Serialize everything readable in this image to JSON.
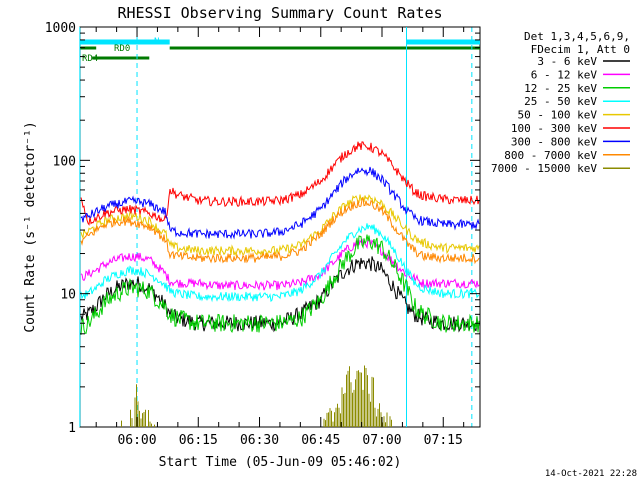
{
  "chart_data": {
    "type": "line",
    "title": "RHESSI Observing Summary Count Rates",
    "xlabel": "Start Time (05-Jun-09 05:46:02)",
    "ylabel": "Count Rate (s⁻¹ detector⁻¹)",
    "y_scale": "log",
    "ylim": [
      1,
      1000
    ],
    "xlim": [
      "05:46:02",
      "07:24:00"
    ],
    "x_ticks": [
      "06:00",
      "06:15",
      "06:30",
      "06:45",
      "07:00",
      "07:15"
    ],
    "y_ticks": [
      "1",
      "10",
      "100",
      "1000"
    ],
    "legend_header": [
      "Det 1,3,4,5,6,9,",
      "FDecim 1, Att 0"
    ],
    "legend_position": "right",
    "timestamp": "14-Oct-2021 22:28",
    "flags": [
      {
        "name": "N",
        "color": "#00e5ff",
        "segments": [
          [
            "05:46",
            "06:08"
          ],
          [
            "07:06",
            "07:24"
          ]
        ]
      },
      {
        "name": "RD0",
        "color": "#007a00",
        "segments": [
          [
            "05:46",
            "05:50"
          ],
          [
            "06:08",
            "07:24"
          ]
        ]
      },
      {
        "name": "RD4",
        "color": "#007a00",
        "segments": [
          [
            "05:49",
            "06:03"
          ]
        ]
      }
    ],
    "vertical_lines": [
      {
        "x": "05:46",
        "style": "solid",
        "color": "#00e5ff"
      },
      {
        "x": "06:00",
        "style": "dashed",
        "color": "#00e5ff"
      },
      {
        "x": "07:06",
        "style": "solid",
        "color": "#00e5ff"
      },
      {
        "x": "07:22",
        "style": "dashed",
        "color": "#00e5ff"
      }
    ],
    "x": [
      "05:46",
      "05:48",
      "05:50",
      "05:52",
      "05:55",
      "05:58",
      "06:00",
      "06:03",
      "06:05",
      "06:07",
      "06:08",
      "06:10",
      "06:15",
      "06:20",
      "06:25",
      "06:30",
      "06:35",
      "06:40",
      "06:45",
      "06:48",
      "06:51",
      "06:54",
      "06:57",
      "07:00",
      "07:03",
      "07:06",
      "07:08",
      "07:10",
      "07:15",
      "07:20",
      "07:22"
    ],
    "series": [
      {
        "name": "3 - 6 keV",
        "color": "#000000",
        "values": [
          6.5,
          7,
          8,
          9.5,
          11,
          12,
          12,
          11,
          9.5,
          8,
          7,
          6.5,
          6,
          6,
          6,
          6,
          6,
          7,
          9,
          12,
          15,
          17,
          17,
          15,
          11,
          8,
          7,
          6.5,
          6,
          6,
          6
        ]
      },
      {
        "name": "6 - 12 keV",
        "color": "#ff00ff",
        "values": [
          13,
          14,
          15,
          16.5,
          18,
          19,
          19,
          18,
          16,
          14,
          12.5,
          12,
          12,
          11.5,
          11.5,
          11.5,
          11.5,
          12,
          14,
          17,
          21,
          24,
          24,
          21,
          17,
          14,
          13,
          12,
          12,
          12,
          12
        ]
      },
      {
        "name": "12 - 25 keV",
        "color": "#00cc00",
        "values": [
          5.5,
          6,
          7,
          8.5,
          10,
          11,
          11,
          10.5,
          9,
          8,
          7,
          6.5,
          6,
          6,
          6,
          6,
          6,
          6.5,
          9,
          13,
          18,
          23,
          25,
          22,
          16,
          11,
          8,
          7,
          6,
          6,
          6
        ]
      },
      {
        "name": "25 - 50 keV",
        "color": "#00ffff",
        "values": [
          9.5,
          10,
          11,
          12.5,
          14,
          15,
          15,
          14,
          13,
          11.5,
          10.5,
          10,
          9.5,
          9.5,
          9.5,
          9.5,
          9.5,
          10.5,
          14,
          19,
          25,
          30,
          32,
          28,
          21,
          15,
          12,
          11,
          10,
          10,
          10
        ]
      },
      {
        "name": "50 - 100 keV",
        "color": "#e8c800",
        "values": [
          27,
          29,
          32,
          35,
          37,
          38,
          38,
          35,
          31,
          28,
          23,
          22,
          21,
          21,
          21,
          21,
          21,
          23,
          30,
          38,
          46,
          52,
          53,
          47,
          38,
          30,
          26,
          24,
          22,
          22,
          22
        ]
      },
      {
        "name": "100 - 300 keV",
        "color": "#ff0000",
        "values": [
          58,
          35,
          37,
          40,
          42,
          43,
          42,
          40,
          38,
          35,
          60,
          55,
          50,
          49,
          49,
          49,
          50,
          55,
          70,
          90,
          112,
          128,
          127,
          112,
          88,
          68,
          58,
          54,
          51,
          50,
          50
        ]
      },
      {
        "name": "300 - 800 keV",
        "color": "#0000ff",
        "values": [
          36,
          38,
          41,
          44,
          47,
          49,
          49,
          47,
          44,
          41,
          30,
          29,
          28,
          28,
          28,
          28,
          29,
          33,
          43,
          56,
          72,
          84,
          84,
          72,
          55,
          42,
          37,
          35,
          33,
          33,
          33
        ]
      },
      {
        "name": "800 - 7000 keV",
        "color": "#ff8800",
        "values": [
          24,
          27,
          30,
          33,
          35,
          35,
          34,
          32,
          29,
          25,
          20,
          19,
          18.5,
          18.5,
          18.5,
          18.5,
          19,
          21,
          28,
          36,
          43,
          48,
          48,
          42,
          32,
          24,
          21,
          19,
          18.5,
          18.5,
          18.5
        ]
      },
      {
        "name": "7000 - 15000 keV",
        "color": "#8b8b00",
        "values": [
          1,
          1,
          1,
          1,
          1,
          1.2,
          2,
          1.2,
          1,
          1,
          1,
          1,
          1,
          1,
          1,
          1,
          1,
          1,
          1,
          1.5,
          2.5,
          3,
          2.5,
          1.5,
          1,
          1,
          1,
          1,
          1,
          1,
          1
        ]
      }
    ]
  }
}
